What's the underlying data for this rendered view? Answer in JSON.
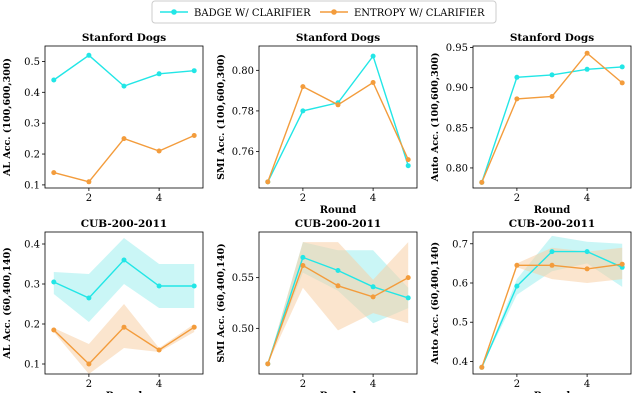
{
  "legend": {
    "entries": [
      {
        "label": "BADGE W/ CLARIFIER",
        "color": "#22e6e6"
      },
      {
        "label": "ENTROPY W/ CLARIFIER",
        "color": "#f39c3c"
      }
    ]
  },
  "colors": {
    "badge": "#22e6e6",
    "badge_fill": "#9fefef",
    "entropy": "#f39c3c",
    "entropy_fill": "#f8cfa6"
  },
  "chart_data": [
    {
      "type": "line",
      "title": "Stanford Dogs",
      "xlabel": "",
      "ylabel": "AL Acc. (100,600,300)",
      "x": [
        1,
        2,
        3,
        4,
        5
      ],
      "xticks": [
        2,
        4
      ],
      "xlim": [
        0.75,
        5.25
      ],
      "ylim": [
        0.09,
        0.55
      ],
      "yticks": [
        0.1,
        0.2,
        0.3,
        0.4,
        0.5
      ],
      "ytick_labels": [
        "0.1",
        "0.2",
        "0.3",
        "0.4",
        "0.5"
      ],
      "series": [
        {
          "name": "BADGE W/ CLARIFIER",
          "values": [
            0.44,
            0.52,
            0.42,
            0.46,
            0.47
          ]
        },
        {
          "name": "ENTROPY W/ CLARIFIER",
          "values": [
            0.14,
            0.11,
            0.25,
            0.21,
            0.26
          ]
        }
      ]
    },
    {
      "type": "line",
      "title": "Stanford Dogs",
      "xlabel": "Round",
      "ylabel": "SMI Acc. (100,600,300)",
      "x": [
        1,
        2,
        3,
        4,
        5
      ],
      "xticks": [
        2,
        4
      ],
      "xlim": [
        0.75,
        5.25
      ],
      "ylim": [
        0.742,
        0.812
      ],
      "yticks": [
        0.76,
        0.78,
        0.8
      ],
      "ytick_labels": [
        "0.76",
        "0.78",
        "0.80"
      ],
      "series": [
        {
          "name": "BADGE W/ CLARIFIER",
          "values": [
            0.745,
            0.78,
            0.784,
            0.807,
            0.753
          ]
        },
        {
          "name": "ENTROPY W/ CLARIFIER",
          "values": [
            0.745,
            0.792,
            0.783,
            0.794,
            0.756
          ]
        }
      ]
    },
    {
      "type": "line",
      "title": "Stanford Dogs",
      "xlabel": "Round",
      "ylabel": "Auto Acc. (100,600,300)",
      "x": [
        1,
        2,
        3,
        4,
        5
      ],
      "xticks": [
        2,
        4
      ],
      "xlim": [
        0.75,
        5.25
      ],
      "ylim": [
        0.775,
        0.952
      ],
      "yticks": [
        0.8,
        0.85,
        0.9,
        0.95
      ],
      "ytick_labels": [
        "0.80",
        "0.85",
        "0.90",
        "0.95"
      ],
      "series": [
        {
          "name": "BADGE W/ CLARIFIER",
          "values": [
            0.782,
            0.913,
            0.916,
            0.923,
            0.926
          ]
        },
        {
          "name": "ENTROPY W/ CLARIFIER",
          "values": [
            0.782,
            0.886,
            0.889,
            0.943,
            0.906
          ]
        }
      ]
    },
    {
      "type": "line",
      "title": "CUB-200-2011",
      "xlabel": "Round",
      "ylabel": "AL Acc. (60,400,140)",
      "x": [
        1,
        2,
        3,
        4,
        5
      ],
      "xticks": [
        2,
        4
      ],
      "xlim": [
        0.75,
        5.25
      ],
      "ylim": [
        0.075,
        0.43
      ],
      "yticks": [
        0.1,
        0.2,
        0.3,
        0.4
      ],
      "ytick_labels": [
        "0.1",
        "0.2",
        "0.3",
        "0.4"
      ],
      "series": [
        {
          "name": "BADGE W/ CLARIFIER",
          "values": [
            0.305,
            0.265,
            0.36,
            0.295,
            0.295
          ],
          "lower": [
            0.275,
            0.205,
            0.3,
            0.24,
            0.24
          ],
          "upper": [
            0.33,
            0.325,
            0.415,
            0.35,
            0.35
          ]
        },
        {
          "name": "ENTROPY W/ CLARIFIER",
          "values": [
            0.185,
            0.1,
            0.192,
            0.135,
            0.192
          ],
          "lower": [
            0.18,
            0.075,
            0.14,
            0.13,
            0.18
          ],
          "upper": [
            0.19,
            0.15,
            0.25,
            0.14,
            0.2
          ]
        }
      ]
    },
    {
      "type": "line",
      "title": "CUB-200-2011",
      "xlabel": "Round",
      "ylabel": "SMI Acc. (60,400,140)",
      "x": [
        1,
        2,
        3,
        4,
        5
      ],
      "xticks": [
        2,
        4
      ],
      "xlim": [
        0.75,
        5.25
      ],
      "ylim": [
        0.455,
        0.595
      ],
      "yticks": [
        0.5,
        0.55
      ],
      "ytick_labels": [
        "0.50",
        "0.55"
      ],
      "series": [
        {
          "name": "BADGE W/ CLARIFIER",
          "values": [
            0.465,
            0.57,
            0.557,
            0.541,
            0.53
          ],
          "lower": [
            0.465,
            0.555,
            0.537,
            0.505,
            0.52
          ],
          "upper": [
            0.465,
            0.585,
            0.577,
            0.577,
            0.54
          ]
        },
        {
          "name": "ENTROPY W/ CLARIFIER",
          "values": [
            0.465,
            0.562,
            0.542,
            0.531,
            0.55
          ],
          "lower": [
            0.465,
            0.54,
            0.498,
            0.515,
            0.505
          ],
          "upper": [
            0.465,
            0.585,
            0.585,
            0.548,
            0.585
          ]
        }
      ]
    },
    {
      "type": "line",
      "title": "CUB-200-2011",
      "xlabel": "Round",
      "ylabel": "Auto Acc. (60,400,140)",
      "x": [
        1,
        2,
        3,
        4,
        5
      ],
      "xticks": [
        2,
        4
      ],
      "xlim": [
        0.75,
        5.25
      ],
      "ylim": [
        0.368,
        0.73
      ],
      "yticks": [
        0.4,
        0.5,
        0.6,
        0.7
      ],
      "ytick_labels": [
        "0.4",
        "0.5",
        "0.6",
        "0.7"
      ],
      "series": [
        {
          "name": "BADGE W/ CLARIFIER",
          "values": [
            0.385,
            0.592,
            0.68,
            0.68,
            0.64
          ],
          "lower": [
            0.385,
            0.57,
            0.63,
            0.65,
            0.59
          ],
          "upper": [
            0.385,
            0.61,
            0.72,
            0.705,
            0.7
          ]
        },
        {
          "name": "ENTROPY W/ CLARIFIER",
          "values": [
            0.385,
            0.645,
            0.645,
            0.636,
            0.648
          ],
          "lower": [
            0.385,
            0.64,
            0.61,
            0.6,
            0.61
          ],
          "upper": [
            0.385,
            0.65,
            0.69,
            0.68,
            0.69
          ]
        }
      ]
    }
  ]
}
